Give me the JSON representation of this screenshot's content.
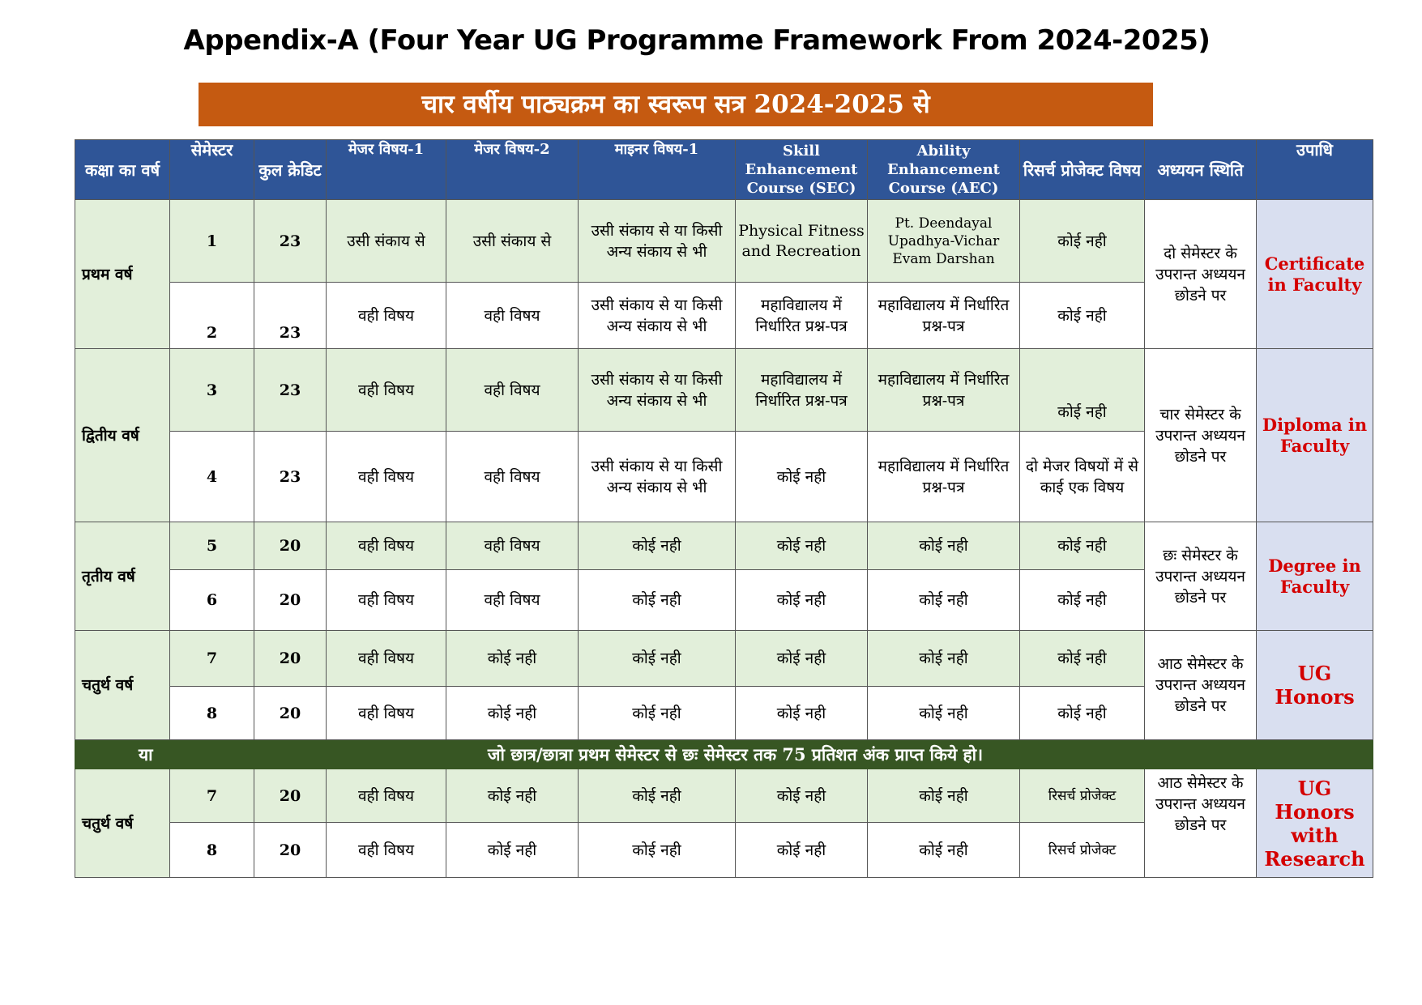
{
  "title": "Appendix-A (Four Year UG Programme Framework From 2024-2025)",
  "banner": "चार वर्षीय पाठ्यक्रम का स्वरूप सत्र 2024-2025 से",
  "headers": {
    "year": "कक्षा का वर्ष",
    "semester": "सेमेस्टर",
    "credit": "कुल क्रेडिट",
    "major1": "मेजर विषय-1",
    "major2": "मेजर विषय-2",
    "minor1": "माइनर विषय-1",
    "sec": "Skill Enhancement Course (SEC)",
    "aec": "Ability Enhancement Course (AEC)",
    "research": "रिसर्च प्रोजेक्ट विषय",
    "status": "अध्ययन स्थिति",
    "degree": "उपाधि"
  },
  "years": {
    "y1": "प्रथम वर्ष",
    "y2": "द्वितीय वर्ष",
    "y3": "तृतीय वर्ष",
    "y4": "चतुर्थ वर्ष",
    "y4b": "चतुर्थ वर्ष"
  },
  "rows": [
    {
      "sem": "1",
      "credit": "23",
      "major1": "उसी संकाय से",
      "major2": "उसी संकाय से",
      "minor1": "उसी संकाय से या किसी अन्य संकाय से भी",
      "sec": "Physical Fitness and Recreation",
      "aec": "Pt. Deendayal Upadhya-Vichar Evam Darshan",
      "research": "कोई नही"
    },
    {
      "sem": "2",
      "credit": "23",
      "major1": "वही विषय",
      "major2": "वही विषय",
      "minor1": "उसी संकाय से या किसी अन्य संकाय से भी",
      "sec": "महाविद्यालय में निर्धारित प्रश्न-पत्र",
      "aec": "महाविद्यालय में निर्धारित प्रश्न-पत्र",
      "research": "कोई नही"
    },
    {
      "sem": "3",
      "credit": "23",
      "major1": "वही विषय",
      "major2": "वही विषय",
      "minor1": "उसी संकाय से या किसी अन्य संकाय से भी",
      "sec": "महाविद्यालय में निर्धारित प्रश्न-पत्र",
      "aec": "महाविद्यालय में निर्धारित प्रश्न-पत्र",
      "research": "कोई नही"
    },
    {
      "sem": "4",
      "credit": "23",
      "major1": "वही विषय",
      "major2": "वही विषय",
      "minor1": "उसी संकाय से या किसी अन्य संकाय से भी",
      "sec": "कोई नही",
      "aec": "महाविद्यालय में निर्धारित प्रश्न-पत्र",
      "research": "दो मेजर विषयों में से काई एक विषय"
    },
    {
      "sem": "5",
      "credit": "20",
      "major1": "वही विषय",
      "major2": "वही विषय",
      "minor1": "कोई नही",
      "sec": "कोई नही",
      "aec": "कोई नही",
      "research": "कोई नही"
    },
    {
      "sem": "6",
      "credit": "20",
      "major1": "वही विषय",
      "major2": "वही विषय",
      "minor1": "कोई नही",
      "sec": "कोई नही",
      "aec": "कोई नही",
      "research": "कोई नही"
    },
    {
      "sem": "7",
      "credit": "20",
      "major1": "वही विषय",
      "major2": "कोई नही",
      "minor1": "कोई नही",
      "sec": "कोई नही",
      "aec": "कोई नही",
      "research": "कोई नही"
    },
    {
      "sem": "8",
      "credit": "20",
      "major1": "वही विषय",
      "major2": "कोई नही",
      "minor1": "कोई नही",
      "sec": "कोई नही",
      "aec": "कोई नही",
      "research": "कोई नही"
    },
    {
      "sem": "7",
      "credit": "20",
      "major1": "वही विषय",
      "major2": "कोई नही",
      "minor1": "कोई नही",
      "sec": "कोई नही",
      "aec": "कोई नही",
      "research": "रिसर्च प्रोजेक्ट"
    },
    {
      "sem": "8",
      "credit": "20",
      "major1": "वही विषय",
      "major2": "कोई नही",
      "minor1": "कोई नही",
      "sec": "कोई नही",
      "aec": "कोई नही",
      "research": "रिसर्च प्रोजेक्ट"
    }
  ],
  "status": {
    "s1": "दो सेमेस्टर के उपरान्त अध्ययन छोडने पर",
    "s2": "चार सेमेस्टर के उपरान्त अध्ययन छोडने पर",
    "s3": "छः सेमेस्टर के उपरान्त अध्ययन छोडने पर",
    "s4": "आठ सेमेस्टर के उपरान्त अध्ययन छोडने पर",
    "s5": "आठ सेमेस्टर के उपरान्त अध्ययन छोडने पर"
  },
  "degrees": {
    "d1": "Certificate in Faculty",
    "d2": "Diploma in Faculty",
    "d3": "Degree in Faculty",
    "d4": "UG Honors",
    "d5": "UG Honors with Research"
  },
  "separator": {
    "or": "या",
    "text": "जो छात्र/छात्रा प्रथम सेमेस्टर से छः सेमेस्टर तक 75 प्रतिशत अंक प्राप्त किये हो।"
  },
  "colors": {
    "banner": "#c55a11",
    "header": "#2f5597",
    "green_row": "#e2efda",
    "degree_bg": "#d9dff0",
    "degree_text": "#d40000",
    "separator": "#375623"
  }
}
